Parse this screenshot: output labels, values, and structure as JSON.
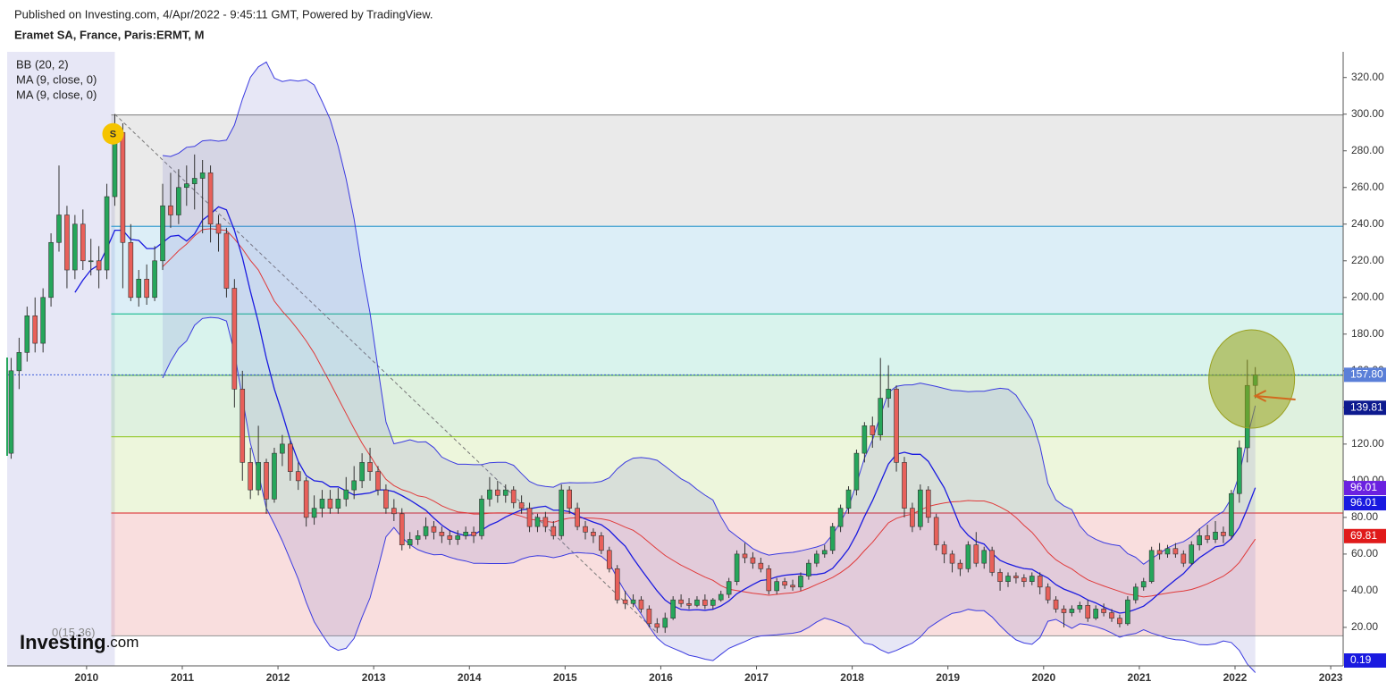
{
  "chart_data": {
    "type": "candlestick",
    "header": "Published on Investing.com, 4/Apr/2022 - 9:45:11 GMT, Powered by TradingView.",
    "title": "Eramet SA, France, Paris:ERMT, M",
    "indicators": [
      "BB (20, 2)",
      "MA (9, close, 0)",
      "MA (9, close, 0)"
    ],
    "up_color": "#26a65b",
    "down_color": "#e8605a",
    "ohlc": [
      [
        115,
        167,
        112,
        160
      ],
      [
        160,
        178,
        150,
        170
      ],
      [
        170,
        195,
        165,
        190
      ],
      [
        190,
        200,
        170,
        175
      ],
      [
        175,
        205,
        170,
        200
      ],
      [
        200,
        235,
        195,
        230
      ],
      [
        230,
        272,
        225,
        245
      ],
      [
        245,
        250,
        205,
        215
      ],
      [
        215,
        245,
        210,
        240
      ],
      [
        240,
        248,
        215,
        220
      ],
      [
        220,
        232,
        212,
        220
      ],
      [
        220,
        228,
        205,
        215
      ],
      [
        215,
        262,
        210,
        255
      ],
      [
        255,
        300,
        250,
        290
      ],
      [
        290,
        295,
        205,
        230
      ],
      [
        230,
        240,
        198,
        200
      ],
      [
        200,
        215,
        195,
        210
      ],
      [
        210,
        218,
        196,
        200
      ],
      [
        200,
        228,
        198,
        220
      ],
      [
        220,
        262,
        215,
        250
      ],
      [
        250,
        268,
        238,
        245
      ],
      [
        245,
        270,
        240,
        260
      ],
      [
        260,
        272,
        250,
        262
      ],
      [
        262,
        278,
        248,
        265
      ],
      [
        265,
        275,
        235,
        268
      ],
      [
        268,
        272,
        230,
        240
      ],
      [
        240,
        245,
        225,
        235
      ],
      [
        235,
        238,
        200,
        205
      ],
      [
        205,
        210,
        140,
        150
      ],
      [
        150,
        160,
        100,
        110
      ],
      [
        110,
        118,
        90,
        95
      ],
      [
        95,
        130,
        92,
        110
      ],
      [
        110,
        112,
        82,
        90
      ],
      [
        90,
        118,
        88,
        115
      ],
      [
        115,
        125,
        108,
        120
      ],
      [
        120,
        122,
        100,
        105
      ],
      [
        105,
        110,
        95,
        100
      ],
      [
        100,
        102,
        75,
        80
      ],
      [
        80,
        92,
        76,
        85
      ],
      [
        85,
        95,
        80,
        90
      ],
      [
        90,
        95,
        82,
        85
      ],
      [
        85,
        96,
        82,
        90
      ],
      [
        90,
        102,
        86,
        95
      ],
      [
        95,
        108,
        90,
        100
      ],
      [
        100,
        115,
        96,
        110
      ],
      [
        110,
        118,
        100,
        105
      ],
      [
        105,
        108,
        92,
        95
      ],
      [
        95,
        98,
        82,
        85
      ],
      [
        85,
        90,
        78,
        82
      ],
      [
        82,
        85,
        62,
        65
      ],
      [
        65,
        72,
        63,
        68
      ],
      [
        68,
        73,
        65,
        70
      ],
      [
        70,
        80,
        68,
        75
      ],
      [
        75,
        78,
        68,
        72
      ],
      [
        72,
        75,
        66,
        70
      ],
      [
        70,
        73,
        65,
        68
      ],
      [
        68,
        73,
        65,
        70
      ],
      [
        70,
        75,
        68,
        72
      ],
      [
        72,
        75,
        66,
        70
      ],
      [
        70,
        92,
        68,
        90
      ],
      [
        90,
        102,
        86,
        95
      ],
      [
        95,
        100,
        88,
        92
      ],
      [
        92,
        98,
        88,
        95
      ],
      [
        95,
        97,
        85,
        88
      ],
      [
        88,
        92,
        82,
        85
      ],
      [
        85,
        88,
        72,
        75
      ],
      [
        75,
        82,
        72,
        80
      ],
      [
        80,
        83,
        72,
        75
      ],
      [
        75,
        78,
        68,
        70
      ],
      [
        70,
        98,
        68,
        95
      ],
      [
        95,
        97,
        82,
        85
      ],
      [
        85,
        88,
        73,
        75
      ],
      [
        75,
        78,
        68,
        72
      ],
      [
        72,
        74,
        66,
        70
      ],
      [
        70,
        72,
        60,
        62
      ],
      [
        62,
        64,
        50,
        52
      ],
      [
        52,
        54,
        33,
        35
      ],
      [
        35,
        40,
        30,
        33
      ],
      [
        33,
        38,
        31,
        35
      ],
      [
        35,
        37,
        28,
        30
      ],
      [
        30,
        32,
        20,
        22
      ],
      [
        22,
        25,
        17,
        20
      ],
      [
        20,
        28,
        17,
        25
      ],
      [
        25,
        37,
        24,
        35
      ],
      [
        35,
        38,
        31,
        33
      ],
      [
        33,
        36,
        30,
        32
      ],
      [
        32,
        37,
        31,
        35
      ],
      [
        35,
        38,
        30,
        32
      ],
      [
        32,
        36,
        30,
        35
      ],
      [
        35,
        40,
        34,
        38
      ],
      [
        38,
        47,
        36,
        45
      ],
      [
        45,
        62,
        43,
        60
      ],
      [
        60,
        66,
        55,
        58
      ],
      [
        58,
        61,
        52,
        55
      ],
      [
        55,
        58,
        50,
        52
      ],
      [
        52,
        54,
        38,
        40
      ],
      [
        40,
        47,
        38,
        45
      ],
      [
        45,
        47,
        41,
        43
      ],
      [
        43,
        46,
        40,
        42
      ],
      [
        42,
        50,
        40,
        48
      ],
      [
        48,
        57,
        46,
        55
      ],
      [
        55,
        62,
        53,
        60
      ],
      [
        60,
        65,
        58,
        62
      ],
      [
        62,
        77,
        60,
        75
      ],
      [
        75,
        87,
        72,
        85
      ],
      [
        85,
        97,
        82,
        95
      ],
      [
        95,
        117,
        92,
        115
      ],
      [
        115,
        132,
        110,
        130
      ],
      [
        130,
        135,
        118,
        125
      ],
      [
        125,
        167,
        122,
        145
      ],
      [
        145,
        163,
        140,
        150
      ],
      [
        150,
        152,
        105,
        110
      ],
      [
        110,
        113,
        80,
        85
      ],
      [
        85,
        88,
        72,
        75
      ],
      [
        75,
        98,
        73,
        95
      ],
      [
        95,
        97,
        77,
        80
      ],
      [
        80,
        82,
        62,
        65
      ],
      [
        65,
        67,
        55,
        60
      ],
      [
        60,
        62,
        50,
        55
      ],
      [
        55,
        57,
        48,
        52
      ],
      [
        52,
        67,
        50,
        65
      ],
      [
        65,
        72,
        53,
        55
      ],
      [
        55,
        64,
        52,
        62
      ],
      [
        62,
        64,
        48,
        50
      ],
      [
        50,
        52,
        40,
        45
      ],
      [
        45,
        50,
        42,
        48
      ],
      [
        48,
        50,
        44,
        47
      ],
      [
        47,
        49,
        42,
        45
      ],
      [
        45,
        50,
        43,
        48
      ],
      [
        48,
        50,
        38,
        42
      ],
      [
        42,
        44,
        33,
        35
      ],
      [
        35,
        37,
        28,
        30
      ],
      [
        30,
        32,
        20,
        28
      ],
      [
        28,
        32,
        26,
        30
      ],
      [
        30,
        34,
        28,
        32
      ],
      [
        32,
        35,
        23,
        25
      ],
      [
        25,
        32,
        24,
        30
      ],
      [
        30,
        33,
        26,
        28
      ],
      [
        28,
        30,
        23,
        25
      ],
      [
        25,
        27,
        20,
        22
      ],
      [
        22,
        37,
        21,
        35
      ],
      [
        35,
        44,
        33,
        42
      ],
      [
        42,
        47,
        40,
        45
      ],
      [
        45,
        64,
        44,
        62
      ],
      [
        62,
        66,
        57,
        60
      ],
      [
        60,
        65,
        58,
        63
      ],
      [
        63,
        66,
        58,
        60
      ],
      [
        60,
        62,
        53,
        55
      ],
      [
        55,
        67,
        54,
        65
      ],
      [
        65,
        74,
        62,
        70
      ],
      [
        70,
        76,
        66,
        68
      ],
      [
        68,
        78,
        66,
        72
      ],
      [
        72,
        75,
        66,
        70
      ],
      [
        70,
        95,
        68,
        93
      ],
      [
        93,
        122,
        88,
        118
      ],
      [
        118,
        166,
        110,
        152
      ],
      [
        152,
        162,
        145,
        157.8
      ]
    ],
    "xlim": [
      2009.17,
      2023.13
    ],
    "xticks": [
      2010,
      2011,
      2012,
      2013,
      2014,
      2015,
      2016,
      2017,
      2018,
      2019,
      2020,
      2021,
      2022,
      2023
    ],
    "ylim": [
      -1,
      334
    ],
    "yticks": [
      {
        "value": 20,
        "label": "20.00"
      },
      {
        "value": 40,
        "label": "40.00"
      },
      {
        "value": 60,
        "label": "60.00"
      },
      {
        "value": 80,
        "label": "80.00"
      },
      {
        "value": 100,
        "label": "100.00"
      },
      {
        "value": 120,
        "label": "120.00"
      },
      {
        "value": 140,
        "label": "140.00"
      },
      {
        "value": 160,
        "label": "160.00"
      },
      {
        "value": 180,
        "label": "180.00"
      },
      {
        "value": 200,
        "label": "200.00"
      },
      {
        "value": 220,
        "label": "220.00"
      },
      {
        "value": 240,
        "label": "240.00"
      },
      {
        "value": 260,
        "label": "260.00"
      },
      {
        "value": 280,
        "label": "280.00"
      },
      {
        "value": 300,
        "label": "300.00"
      },
      {
        "value": 320,
        "label": "320.00"
      }
    ],
    "fib": {
      "label": "0(15.36)",
      "levels": [
        {
          "value": 15.36,
          "color": "#9e9e9e"
        },
        {
          "value": 82.4,
          "color": "#e04848"
        },
        {
          "value": 124,
          "color": "#9ccc3d"
        },
        {
          "value": 157.5,
          "color": "#4caf50"
        },
        {
          "value": 191,
          "color": "#2bbf9a"
        },
        {
          "value": 238.8,
          "color": "#3d9fd0"
        },
        {
          "value": 299.6,
          "color": "#8a8a8a"
        }
      ]
    },
    "price_tags": [
      {
        "value": 157.8,
        "label": "157.80",
        "color": "#5a7fd8"
      },
      {
        "value": 139.81,
        "label": "139.81",
        "color": "#0d1a8f"
      },
      {
        "value": 96.01,
        "label": "96.01",
        "color": "#6b21e0"
      },
      {
        "value": 96.01,
        "label": "96.01",
        "color": "#1a1ae0"
      },
      {
        "value": 69.81,
        "label": "69.81",
        "color": "#e01a1a"
      },
      {
        "value": 0.19,
        "label": "0.19",
        "color": "#1a1ae0"
      }
    ],
    "marker": "S",
    "logo": {
      "brand": "Investing",
      "suffix": ".com"
    }
  }
}
